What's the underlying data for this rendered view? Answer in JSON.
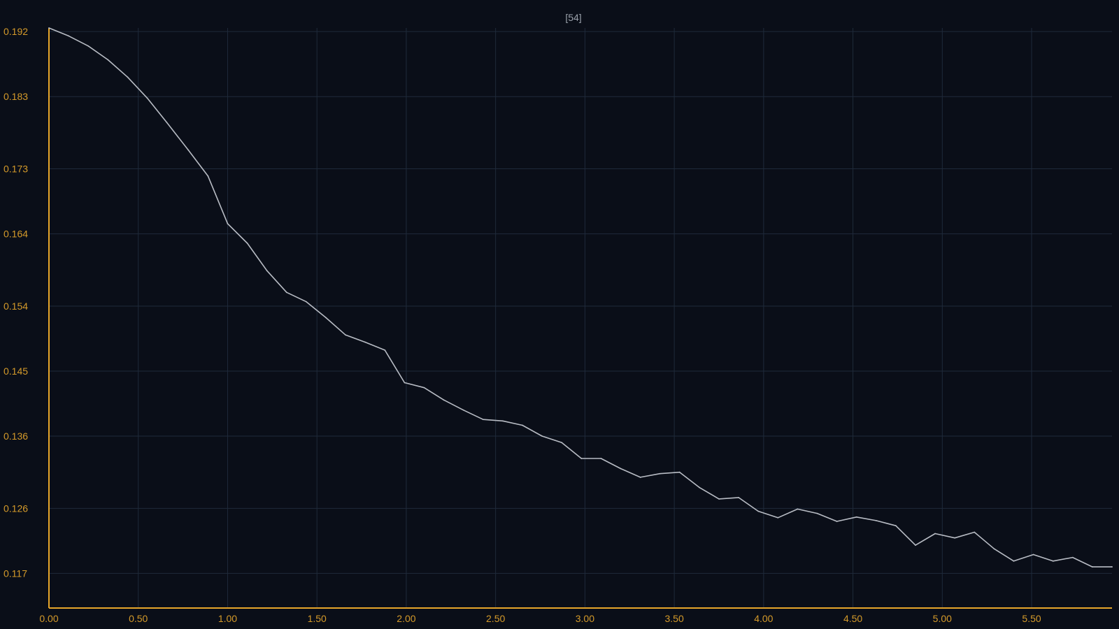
{
  "colors": {
    "background": "#0a0e18",
    "axis": "#e6a52a",
    "tick_label": "#d49a2a",
    "grid": "#1f2a3a",
    "line": "#b8bcc4",
    "title": "#9aa0aa"
  },
  "chart_data": {
    "type": "line",
    "title": "[54]",
    "xlabel": "",
    "ylabel": "",
    "grid": true,
    "xlim": [
      0.0,
      5.95
    ],
    "ylim": [
      0.1122,
      0.1925
    ],
    "x_ticks": [
      0.0,
      0.5,
      1.0,
      1.5,
      2.0,
      2.5,
      3.0,
      3.5,
      4.0,
      4.5,
      5.0,
      5.5
    ],
    "x_tick_labels": [
      "0.00",
      "0.50",
      "1.00",
      "1.50",
      "2.00",
      "2.50",
      "3.00",
      "3.50",
      "4.00",
      "4.50",
      "5.00",
      "5.50"
    ],
    "y_ticks": [
      0.192,
      0.183,
      0.173,
      0.164,
      0.154,
      0.145,
      0.136,
      0.126,
      0.117
    ],
    "y_tick_labels": [
      "0.192",
      "0.183",
      "0.173",
      "0.164",
      "0.154",
      "0.145",
      "0.136",
      "0.126",
      "0.117"
    ],
    "series": [
      {
        "x": [
          0.0,
          0.11,
          0.22,
          0.33,
          0.44,
          0.55,
          0.66,
          0.78,
          0.89,
          1.0,
          1.11,
          1.22,
          1.33,
          1.44,
          1.55,
          1.66,
          1.77,
          1.88,
          1.99,
          2.1,
          2.21,
          2.32,
          2.43,
          2.54,
          2.65,
          2.76,
          2.87,
          2.98,
          3.09,
          3.2,
          3.31,
          3.42,
          3.53,
          3.64,
          3.75,
          3.86,
          3.97,
          4.08,
          4.19,
          4.3,
          4.41,
          4.52,
          4.63,
          4.74,
          4.85,
          4.96,
          5.07,
          5.18,
          5.29,
          5.4,
          5.51,
          5.62,
          5.73,
          5.84,
          5.95
        ],
        "values": [
          0.1925,
          0.1914,
          0.19,
          0.1881,
          0.1857,
          0.1828,
          0.1794,
          0.1756,
          0.172,
          0.1654,
          0.1627,
          0.1589,
          0.1559,
          0.1546,
          0.1524,
          0.15,
          0.149,
          0.1479,
          0.1434,
          0.1427,
          0.141,
          0.1396,
          0.1383,
          0.1381,
          0.1375,
          0.136,
          0.1351,
          0.1329,
          0.1329,
          0.1315,
          0.1303,
          0.1308,
          0.131,
          0.1289,
          0.1273,
          0.1275,
          0.1256,
          0.1247,
          0.1259,
          0.1253,
          0.1242,
          0.1248,
          0.1243,
          0.1236,
          0.1209,
          0.1225,
          0.1219,
          0.1227,
          0.1204,
          0.1187,
          0.1196,
          0.1187,
          0.1192,
          0.1179,
          0.1179
        ]
      }
    ]
  }
}
